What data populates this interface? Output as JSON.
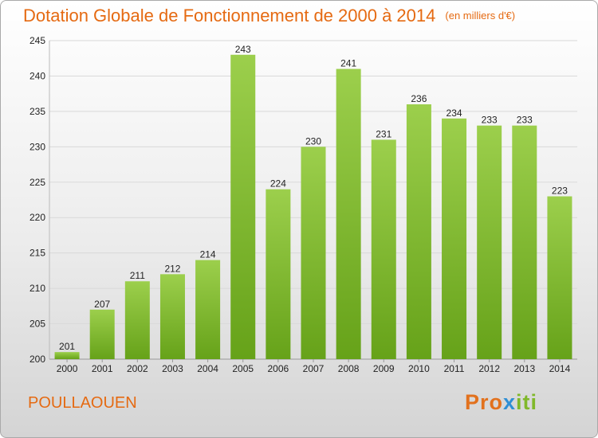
{
  "title": "Dotation Globale de Fonctionnement de 2000 à 2014",
  "unit": "(en milliers d'€)",
  "commune": "POULLAOUEN",
  "logo": {
    "part1": "Pro",
    "part2": "x",
    "part3": "iti"
  },
  "colors": {
    "title": "#e56a12",
    "bar_light": "#9ccf4c",
    "bar_dark": "#66a219",
    "grid": "#d9d9d9"
  },
  "chart_data": {
    "type": "bar",
    "categories": [
      "2000",
      "2001",
      "2002",
      "2003",
      "2004",
      "2005",
      "2006",
      "2007",
      "2008",
      "2009",
      "2010",
      "2011",
      "2012",
      "2013",
      "2014"
    ],
    "values": [
      201,
      207,
      211,
      212,
      214,
      243,
      224,
      230,
      241,
      231,
      236,
      234,
      233,
      233,
      223
    ],
    "data_labels": [
      "201",
      "207",
      "211",
      "212",
      "214",
      "243",
      "224",
      "230",
      "241",
      "231",
      "236",
      "234",
      "233",
      "233",
      "223"
    ],
    "ylim": [
      200,
      245
    ],
    "yticks": [
      200,
      205,
      210,
      215,
      220,
      225,
      230,
      235,
      240,
      245
    ],
    "grid": true
  }
}
